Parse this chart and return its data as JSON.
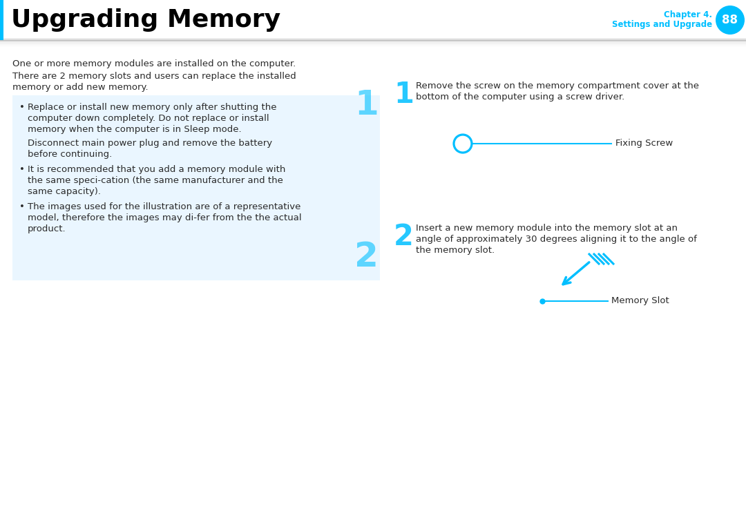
{
  "title": "Upgrading Memory",
  "chapter_label": "Chapter 4.",
  "chapter_sub": "Settings and Upgrade",
  "page_num": "88",
  "cyan": "#00BFFF",
  "dark_text": "#2a2a2a",
  "light_blue_bg": "#EAF6FF",
  "para1": "One or more memory modules are installed on the computer.",
  "para2_l1": "There are 2 memory slots and users can replace the installed",
  "para2_l2": "memory or add new memory.",
  "b1_l1": "Replace or install new memory only after shutting the",
  "b1_l2": "computer down completely. Do not replace or install",
  "b1_l3": "memory when the computer is in Sleep mode.",
  "b1n_l1": "Disconnect main power plug and remove the battery",
  "b1n_l2": "before continuing.",
  "b2_l1": "It is recommended that you add a memory module with",
  "b2_l2": "the same speci­cation (the same manufacturer and the",
  "b2_l3": "same capacity).",
  "b3_l1": "The images used for the illustration are of a representative",
  "b3_l2": "model, therefore the images may di­fer from the the actual",
  "b3_l3": "product.",
  "step1_num": "1",
  "step1_l1": "Remove the screw on the memory compartment cover at the",
  "step1_l2": "bottom of the computer using a screw driver.",
  "fixing_screw_label": "Fixing Screw",
  "step2_num": "2",
  "step2_l1": "Insert a new memory module into the memory slot at an",
  "step2_l2": "angle of approximately 30 degrees aligning it to the angle of",
  "step2_l3": "the memory slot.",
  "memory_slot_label": "Memory Slot",
  "fig_w": 10.8,
  "fig_h": 7.66,
  "dpi": 100
}
